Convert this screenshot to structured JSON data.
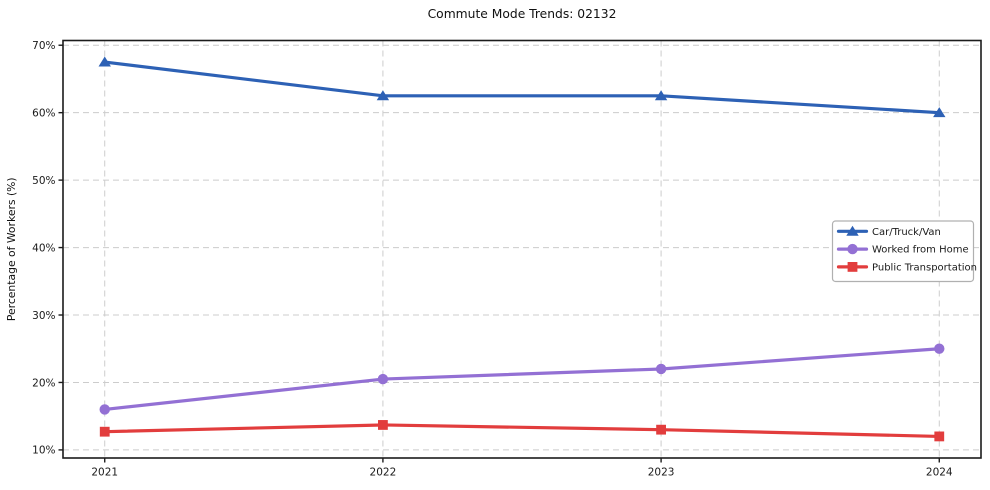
{
  "chart_data": {
    "type": "line",
    "title": "Commute Mode Trends: 02132",
    "xlabel": "",
    "ylabel": "Percentage of Workers (%)",
    "x": [
      2021,
      2022,
      2023,
      2024
    ],
    "x_tick_labels": [
      "2021",
      "2022",
      "2023",
      "2024"
    ],
    "y_ticks": [
      10,
      20,
      30,
      40,
      50,
      60,
      70
    ],
    "y_tick_labels": [
      "10%",
      "20%",
      "30%",
      "40%",
      "50%",
      "60%",
      "70%"
    ],
    "xlim": [
      2020.85,
      2024.15
    ],
    "ylim": [
      8.8,
      70.7
    ],
    "grid": true,
    "grid_style": "dashed",
    "grid_color": "#cccccc",
    "axis_color": "#1c1c1c",
    "tick_label_color": "#1a1a1a",
    "background": "#ffffff",
    "legend": {
      "position": "center-right",
      "background": "#ffffff",
      "border_color": "#b0b0b0"
    },
    "series": [
      {
        "name": "Car/Truck/Van",
        "color": "#2d61b5",
        "marker": "triangle-up",
        "values": [
          67.5,
          62.5,
          62.5,
          60.0
        ]
      },
      {
        "name": "Worked from Home",
        "color": "#9370d4",
        "marker": "circle",
        "values": [
          16.0,
          20.5,
          22.0,
          25.0
        ]
      },
      {
        "name": "Public Transportation",
        "color": "#e23d3d",
        "marker": "square",
        "values": [
          12.7,
          13.7,
          13.0,
          12.0
        ]
      }
    ]
  }
}
